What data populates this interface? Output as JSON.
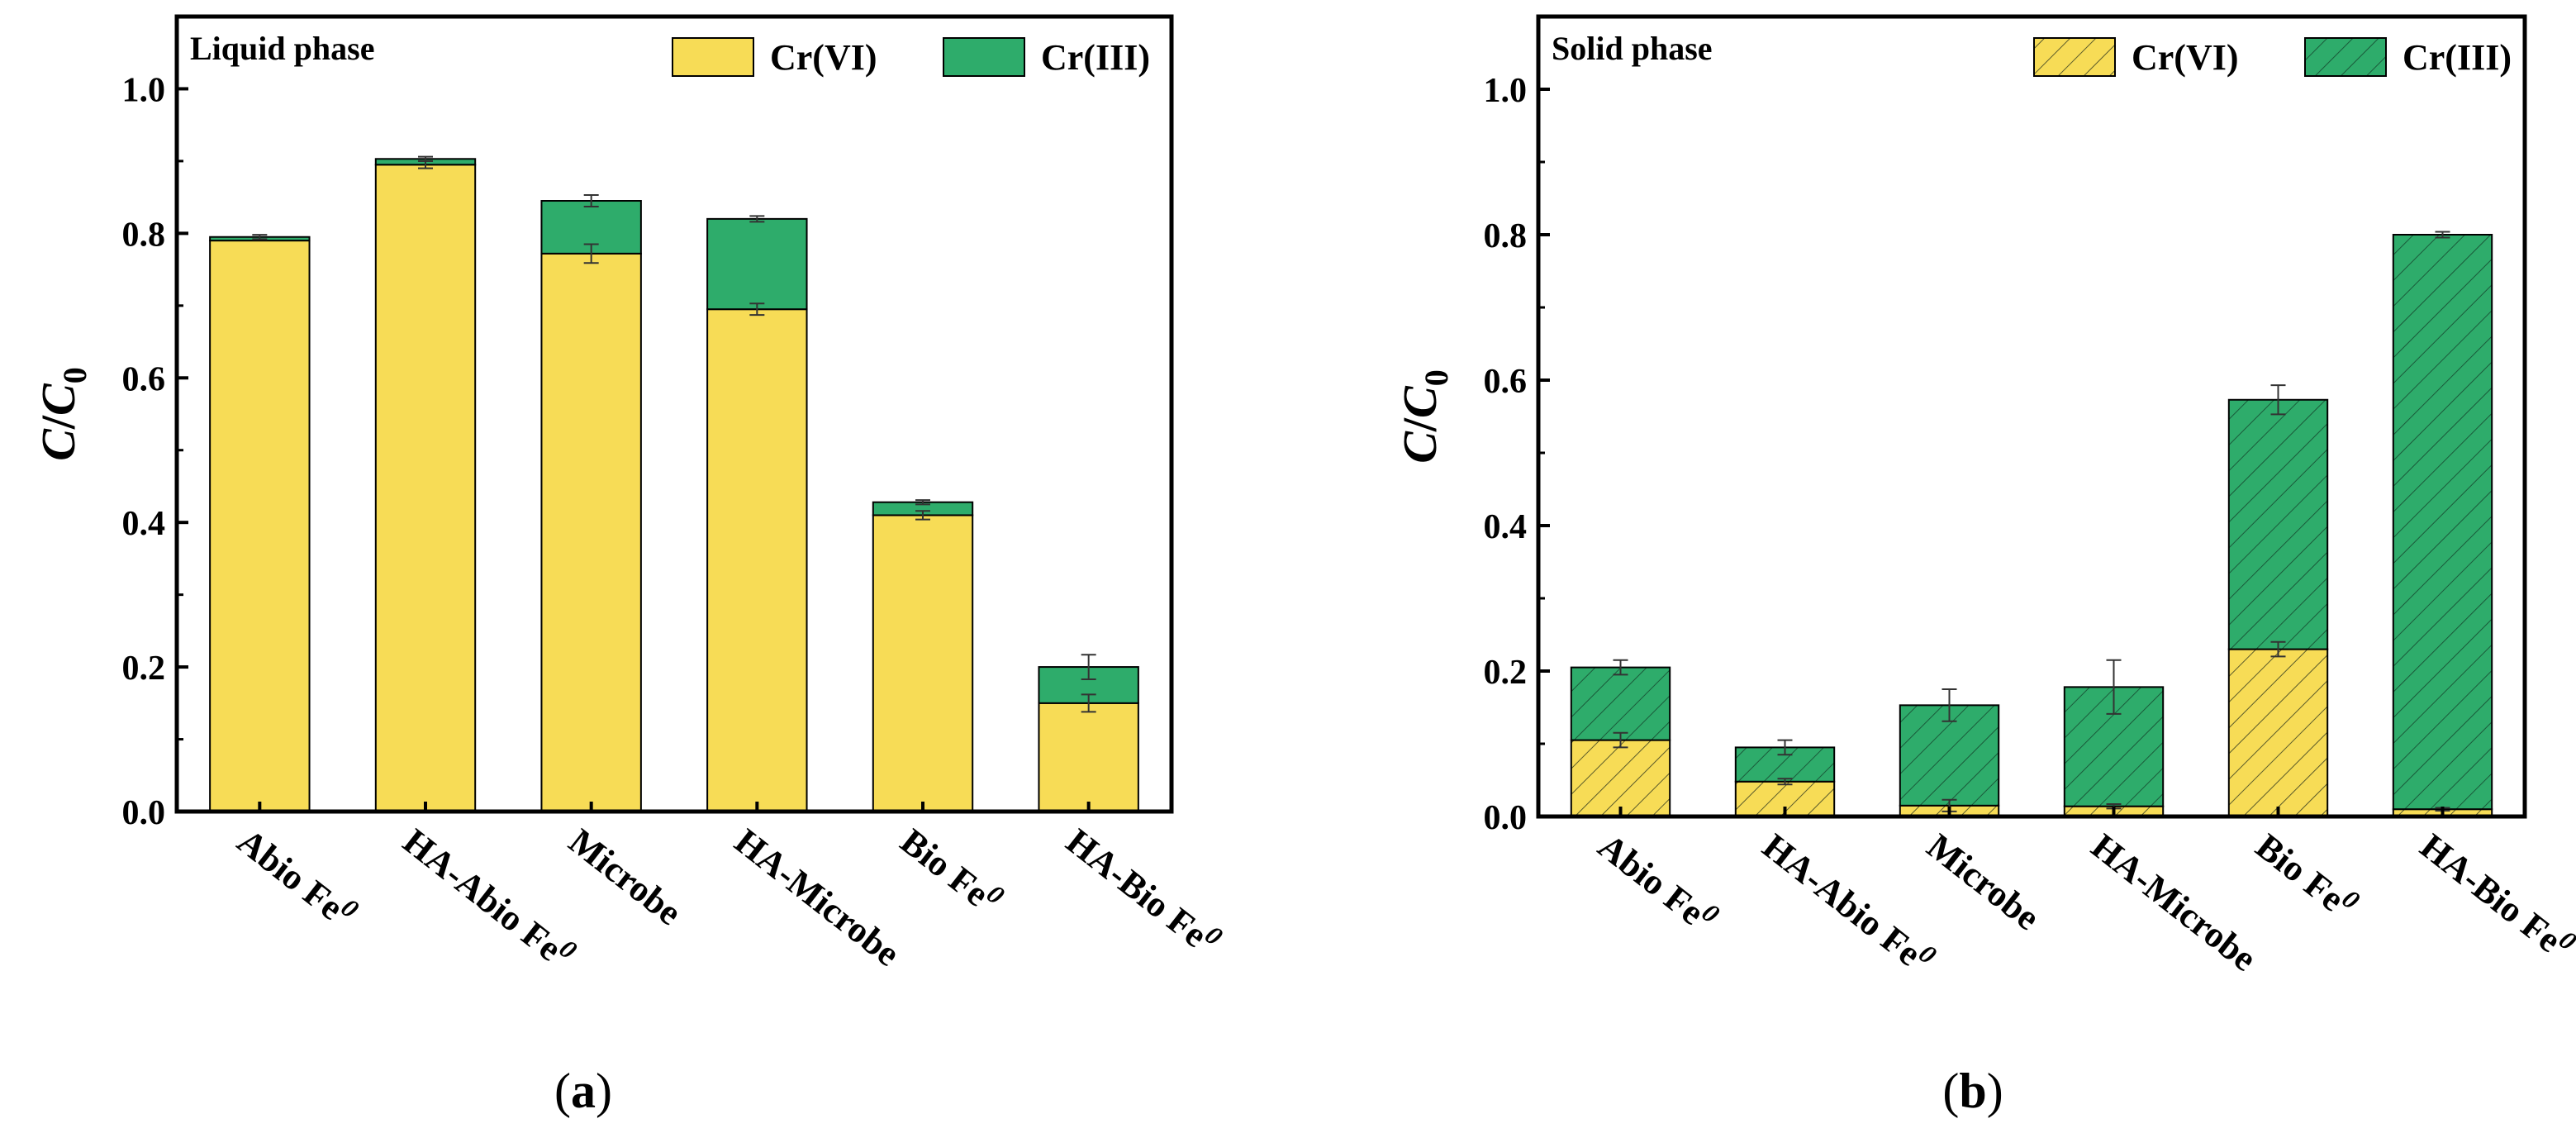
{
  "panels": [
    {
      "id": "a",
      "phase_label": "Liquid phase",
      "panel_label": "a",
      "hatched": false
    },
    {
      "id": "b",
      "phase_label": "Solid phase",
      "panel_label": "b",
      "hatched": true
    }
  ],
  "ylabel": {
    "main": "C",
    "sep": "/",
    "sub_base": "C",
    "sub": "0"
  },
  "colors": {
    "crvi": "#f7dc56",
    "criii": "#2eac6b",
    "axis": "#000000"
  },
  "chart_data": [
    {
      "type": "bar",
      "stacked": true,
      "title": "Liquid phase",
      "categories": [
        "Abio Fe0",
        "HA-Abio Fe0",
        "Microbe",
        "HA-Microbe",
        "Bio Fe0",
        "HA-Bio Fe0"
      ],
      "category_display": [
        {
          "base": "Abio Fe",
          "sup": "0"
        },
        {
          "base": "HA-Abio Fe",
          "sup": "0"
        },
        {
          "base": "Microbe",
          "sup": ""
        },
        {
          "base": "HA-Microbe",
          "sup": ""
        },
        {
          "base": "Bio Fe",
          "sup": "0"
        },
        {
          "base": "HA-Bio Fe",
          "sup": "0"
        }
      ],
      "series": [
        {
          "name": "Cr(VI)",
          "values": [
            0.79,
            0.895,
            0.772,
            0.695,
            0.41,
            0.15
          ],
          "errors": [
            0.0,
            0.005,
            0.013,
            0.008,
            0.006,
            0.012
          ]
        },
        {
          "name": "Cr(III)",
          "values": [
            0.005,
            0.008,
            0.073,
            0.125,
            0.018,
            0.05
          ],
          "errors": [
            0.003,
            0.003,
            0.008,
            0.004,
            0.003,
            0.017
          ]
        }
      ],
      "ylim": [
        0,
        1.1
      ],
      "yticks": [
        "0.0",
        "0.2",
        "0.4",
        "0.6",
        "0.8",
        "1.0"
      ],
      "ytick_values": [
        0,
        0.2,
        0.4,
        0.6,
        0.8,
        1.0
      ],
      "legend": "top-right"
    },
    {
      "type": "bar",
      "stacked": true,
      "title": "Solid phase",
      "categories": [
        "Abio Fe0",
        "HA-Abio Fe0",
        "Microbe",
        "HA-Microbe",
        "Bio Fe0",
        "HA-Bio Fe0"
      ],
      "category_display": [
        {
          "base": "Abio Fe",
          "sup": "0"
        },
        {
          "base": "HA-Abio Fe",
          "sup": "0"
        },
        {
          "base": "Microbe",
          "sup": ""
        },
        {
          "base": "HA-Microbe",
          "sup": ""
        },
        {
          "base": "Bio Fe",
          "sup": "0"
        },
        {
          "base": "HA-Bio Fe",
          "sup": "0"
        }
      ],
      "series": [
        {
          "name": "Cr(VI)",
          "values": [
            0.105,
            0.048,
            0.015,
            0.014,
            0.23,
            0.01
          ],
          "errors": [
            0.01,
            0.004,
            0.008,
            0.003,
            0.01,
            0.002
          ]
        },
        {
          "name": "Cr(III)",
          "values": [
            0.1,
            0.047,
            0.138,
            0.164,
            0.343,
            0.79
          ],
          "errors": [
            0.01,
            0.01,
            0.022,
            0.037,
            0.02,
            0.004
          ]
        }
      ],
      "ylim": [
        0,
        1.1
      ],
      "yticks": [
        "0.0",
        "0.2",
        "0.4",
        "0.6",
        "0.8",
        "1.0"
      ],
      "ytick_values": [
        0,
        0.2,
        0.4,
        0.6,
        0.8,
        1.0
      ],
      "legend": "top-right"
    }
  ]
}
